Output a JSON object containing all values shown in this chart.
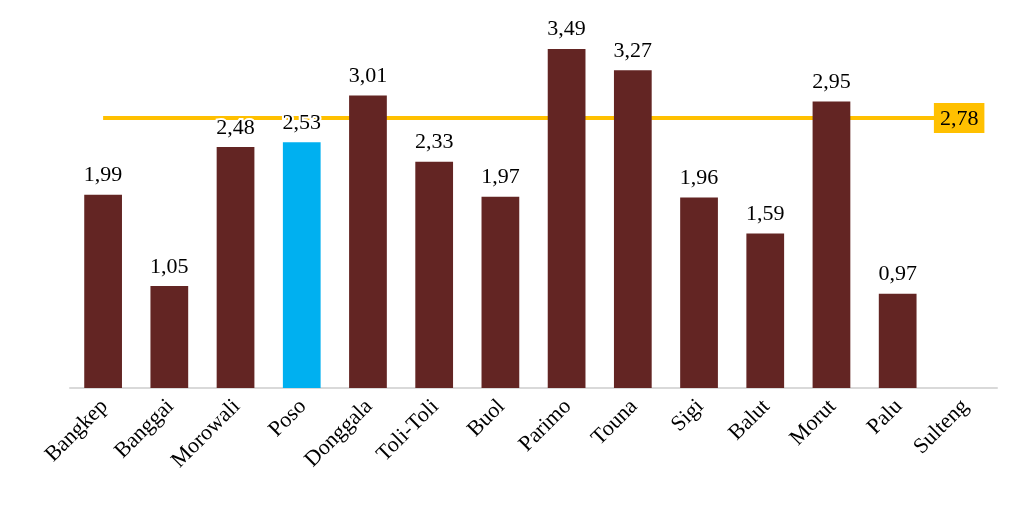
{
  "chart_data": {
    "type": "bar",
    "categories": [
      "Bangkep",
      "Banggai",
      "Morowali",
      "Poso",
      "Donggala",
      "Toli-Toli",
      "Buol",
      "Parimo",
      "Touna",
      "Sigi",
      "Balut",
      "Morut",
      "Palu",
      "Sulteng"
    ],
    "values": [
      1.99,
      1.05,
      2.48,
      2.53,
      3.01,
      2.33,
      1.97,
      3.49,
      3.27,
      1.96,
      1.59,
      2.95,
      0.97,
      null
    ],
    "value_labels": [
      "1,99",
      "1,05",
      "2,48",
      "2,53",
      "3,01",
      "2,33",
      "1,97",
      "3,49",
      "3,27",
      "1,96",
      "1,59",
      "2,95",
      "0,97",
      null
    ],
    "colors": [
      "#632523",
      "#632523",
      "#632523",
      "#00b0f0",
      "#632523",
      "#632523",
      "#632523",
      "#632523",
      "#632523",
      "#632523",
      "#632523",
      "#632523",
      "#632523",
      "#632523"
    ],
    "ref_lines": [
      {
        "axis": "y",
        "value": 2.78,
        "label": "2,78",
        "color": "#ffc000"
      }
    ],
    "grid": false
  }
}
